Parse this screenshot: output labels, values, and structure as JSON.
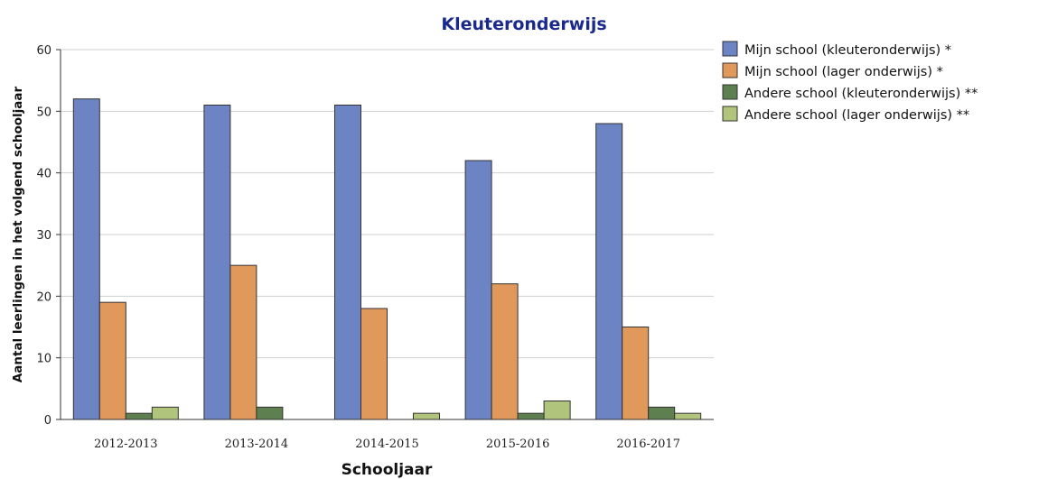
{
  "chart_data": {
    "type": "bar",
    "title": "Kleuteronderwijs",
    "xlabel": "Schooljaar",
    "ylabel": "Aantal leerlingen in het volgend schooljaar",
    "categories": [
      "2012-2013",
      "2013-2014",
      "2014-2015",
      "2015-2016",
      "2016-2017"
    ],
    "ylim": [
      0,
      60
    ],
    "yticks": [
      0,
      10,
      20,
      30,
      40,
      50,
      60
    ],
    "grid": true,
    "legend_position": "right",
    "series": [
      {
        "name": "Mijn school (kleuteronderwijs) *",
        "color": "#6d84c4",
        "values": [
          52,
          51,
          51,
          42,
          48
        ]
      },
      {
        "name": "Mijn school (lager onderwijs) *",
        "color": "#e0995a",
        "values": [
          19,
          25,
          18,
          22,
          15
        ]
      },
      {
        "name": "Andere school (kleuteronderwijs) **",
        "color": "#5e7f4f",
        "values": [
          1,
          2,
          0,
          1,
          2
        ]
      },
      {
        "name": "Andere school (lager onderwijs) **",
        "color": "#b1c47c",
        "values": [
          2,
          0,
          1,
          3,
          1
        ]
      }
    ]
  }
}
